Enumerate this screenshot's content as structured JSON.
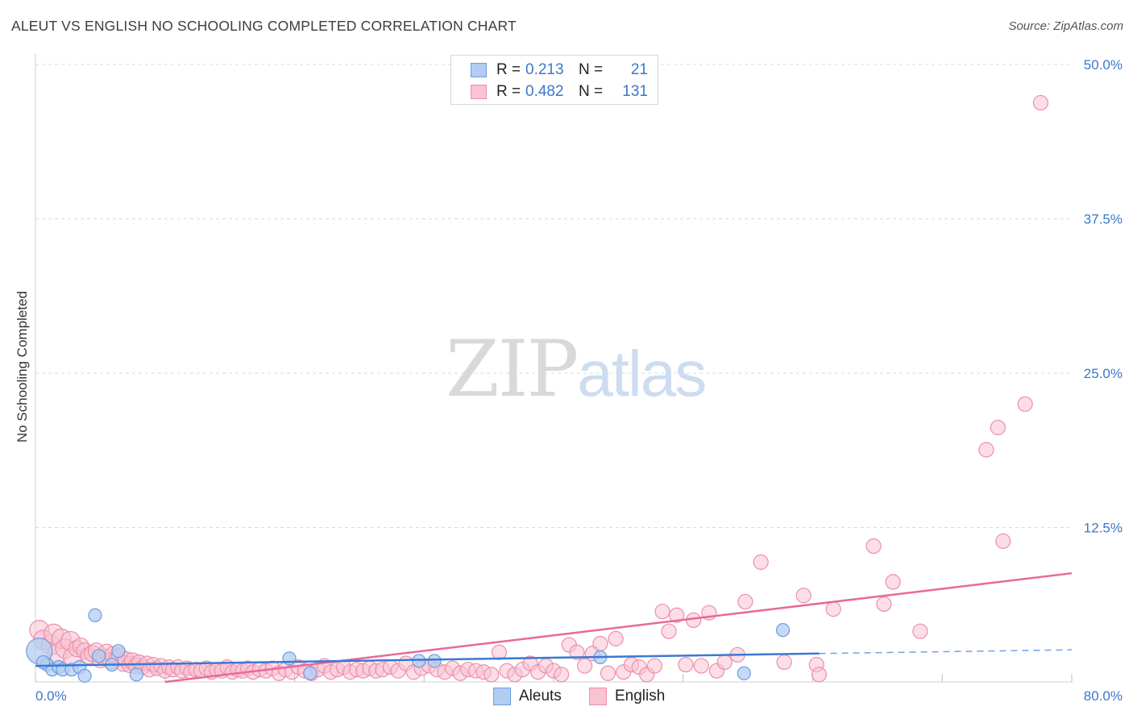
{
  "title": "ALEUT VS ENGLISH NO SCHOOLING COMPLETED CORRELATION CHART",
  "source": "Source: ZipAtlas.com",
  "watermark": {
    "zip": "ZIP",
    "atlas": "atlas"
  },
  "colors": {
    "aleut_fill": "#b3cdf2",
    "aleut_stroke": "#6b9be0",
    "aleut_line": "#3b78d4",
    "english_fill": "#f8c3d2",
    "english_stroke": "#ee8eab",
    "english_line": "#e8699a",
    "axis_label": "#3a78c9",
    "grid": "#dadada"
  },
  "legend": {
    "rows": [
      {
        "r_label": "R =",
        "r_value": "0.213",
        "n_label": "N =",
        "n_value": "21"
      },
      {
        "r_label": "R =",
        "r_value": "0.482",
        "n_label": "N =",
        "n_value": "131"
      }
    ]
  },
  "bottom_legend": {
    "aleut": "Aleuts",
    "english": "English"
  },
  "chart_data": {
    "type": "scatter",
    "title": "ALEUT VS ENGLISH NO SCHOOLING COMPLETED CORRELATION CHART",
    "xlabel": "",
    "ylabel": "No Schooling Completed",
    "xlim": [
      0,
      80
    ],
    "ylim": [
      0,
      50
    ],
    "x_tick_labels": [
      "0.0%",
      "80.0%"
    ],
    "y_ticks": [
      12.5,
      25.0,
      37.5,
      50.0
    ],
    "y_tick_labels": [
      "12.5%",
      "25.0%",
      "37.5%",
      "50.0%"
    ],
    "grid": true,
    "legend_position": "top-center",
    "series": [
      {
        "name": "Aleuts",
        "r": 0.213,
        "n": 21,
        "points": [
          [
            0.3,
            2.5
          ],
          [
            0.9,
            1.4
          ],
          [
            1.3,
            1.0
          ],
          [
            1.8,
            1.2
          ],
          [
            2.1,
            1.0
          ],
          [
            2.8,
            1.0
          ],
          [
            3.4,
            1.2
          ],
          [
            3.8,
            0.5
          ],
          [
            4.6,
            5.4
          ],
          [
            4.9,
            2.1
          ],
          [
            5.9,
            1.4
          ],
          [
            6.4,
            2.5
          ],
          [
            7.8,
            0.6
          ],
          [
            19.6,
            1.9
          ],
          [
            21.2,
            0.7
          ],
          [
            29.6,
            1.7
          ],
          [
            30.8,
            1.7
          ],
          [
            43.6,
            2.0
          ],
          [
            54.7,
            0.7
          ],
          [
            57.7,
            4.2
          ],
          [
            0.6,
            1.6
          ]
        ],
        "trend": {
          "x_start": 0,
          "y_start": 1.3,
          "x_end": 60.5,
          "y_end": 2.3,
          "dash_to_x": 80,
          "dash_to_y": 2.6
        }
      },
      {
        "name": "English",
        "r": 0.482,
        "n": 131,
        "points": [
          [
            0.3,
            4.2
          ],
          [
            0.6,
            3.4
          ],
          [
            1.2,
            3.0
          ],
          [
            1.4,
            3.9
          ],
          [
            1.7,
            2.3
          ],
          [
            2.0,
            3.5
          ],
          [
            2.3,
            2.7
          ],
          [
            2.7,
            3.3
          ],
          [
            2.9,
            2.0
          ],
          [
            3.2,
            2.7
          ],
          [
            3.5,
            2.9
          ],
          [
            3.8,
            2.5
          ],
          [
            4.1,
            2.1
          ],
          [
            4.4,
            2.3
          ],
          [
            4.7,
            2.5
          ],
          [
            5.0,
            1.8
          ],
          [
            5.3,
            2.0
          ],
          [
            5.5,
            2.4
          ],
          [
            5.8,
            1.7
          ],
          [
            6.0,
            2.2
          ],
          [
            6.3,
            1.9
          ],
          [
            6.5,
            2.1
          ],
          [
            6.8,
            1.5
          ],
          [
            7.0,
            1.8
          ],
          [
            7.3,
            1.4
          ],
          [
            7.5,
            1.7
          ],
          [
            7.8,
            1.3
          ],
          [
            8.0,
            1.6
          ],
          [
            8.3,
            1.2
          ],
          [
            8.6,
            1.5
          ],
          [
            8.8,
            1.0
          ],
          [
            9.1,
            1.4
          ],
          [
            9.4,
            1.1
          ],
          [
            9.7,
            1.3
          ],
          [
            10.0,
            0.9
          ],
          [
            10.3,
            1.2
          ],
          [
            10.6,
            1.0
          ],
          [
            11.0,
            1.2
          ],
          [
            11.3,
            0.9
          ],
          [
            11.7,
            1.1
          ],
          [
            12.0,
            0.8
          ],
          [
            12.4,
            1.0
          ],
          [
            12.8,
            0.9
          ],
          [
            13.2,
            1.1
          ],
          [
            13.6,
            0.8
          ],
          [
            14.0,
            1.0
          ],
          [
            14.4,
            0.9
          ],
          [
            14.8,
            1.2
          ],
          [
            15.2,
            0.8
          ],
          [
            15.6,
            1.0
          ],
          [
            16.0,
            0.9
          ],
          [
            16.4,
            1.1
          ],
          [
            16.8,
            0.8
          ],
          [
            17.3,
            1.0
          ],
          [
            17.8,
            0.9
          ],
          [
            18.3,
            1.1
          ],
          [
            18.8,
            0.7
          ],
          [
            19.3,
            1.0
          ],
          [
            19.8,
            0.8
          ],
          [
            20.3,
            1.2
          ],
          [
            20.8,
            0.9
          ],
          [
            21.3,
            0.7
          ],
          [
            21.8,
            1.0
          ],
          [
            22.3,
            1.3
          ],
          [
            22.8,
            0.8
          ],
          [
            23.3,
            1.0
          ],
          [
            23.8,
            1.2
          ],
          [
            24.3,
            0.8
          ],
          [
            24.8,
            1.0
          ],
          [
            25.3,
            0.9
          ],
          [
            25.8,
            1.1
          ],
          [
            26.3,
            0.9
          ],
          [
            26.8,
            1.0
          ],
          [
            27.4,
            1.2
          ],
          [
            28.0,
            0.9
          ],
          [
            28.6,
            1.5
          ],
          [
            29.2,
            0.8
          ],
          [
            29.8,
            1.1
          ],
          [
            30.4,
            1.3
          ],
          [
            31.0,
            1.0
          ],
          [
            31.6,
            0.8
          ],
          [
            32.2,
            1.1
          ],
          [
            32.8,
            0.7
          ],
          [
            33.4,
            1.0
          ],
          [
            34.0,
            0.9
          ],
          [
            34.6,
            0.8
          ],
          [
            35.2,
            0.6
          ],
          [
            35.8,
            2.4
          ],
          [
            36.4,
            0.9
          ],
          [
            37.0,
            0.6
          ],
          [
            37.6,
            1.0
          ],
          [
            38.2,
            1.5
          ],
          [
            38.8,
            0.8
          ],
          [
            39.4,
            1.3
          ],
          [
            40.0,
            0.9
          ],
          [
            40.6,
            0.6
          ],
          [
            41.2,
            3.0
          ],
          [
            41.8,
            2.4
          ],
          [
            42.4,
            1.3
          ],
          [
            43.0,
            2.3
          ],
          [
            43.6,
            3.1
          ],
          [
            44.2,
            0.7
          ],
          [
            44.8,
            3.5
          ],
          [
            45.4,
            0.8
          ],
          [
            46.0,
            1.4
          ],
          [
            46.6,
            1.2
          ],
          [
            47.2,
            0.6
          ],
          [
            47.8,
            1.3
          ],
          [
            48.4,
            5.7
          ],
          [
            48.9,
            4.1
          ],
          [
            49.5,
            5.4
          ],
          [
            50.2,
            1.4
          ],
          [
            50.8,
            5.0
          ],
          [
            51.4,
            1.3
          ],
          [
            52.0,
            5.6
          ],
          [
            52.6,
            0.9
          ],
          [
            53.2,
            1.6
          ],
          [
            54.2,
            2.2
          ],
          [
            54.8,
            6.5
          ],
          [
            56.0,
            9.7
          ],
          [
            57.8,
            1.6
          ],
          [
            59.3,
            7.0
          ],
          [
            60.3,
            1.4
          ],
          [
            61.6,
            5.9
          ],
          [
            64.7,
            11.0
          ],
          [
            65.5,
            6.3
          ],
          [
            66.2,
            8.1
          ],
          [
            68.3,
            4.1
          ],
          [
            73.4,
            18.8
          ],
          [
            74.3,
            20.6
          ],
          [
            74.7,
            11.4
          ],
          [
            76.4,
            22.5
          ],
          [
            77.6,
            46.9
          ],
          [
            60.5,
            0.6
          ]
        ],
        "trend": {
          "x_start": 10,
          "y_start": 0,
          "x_end": 80,
          "y_end": 8.8
        }
      }
    ]
  }
}
